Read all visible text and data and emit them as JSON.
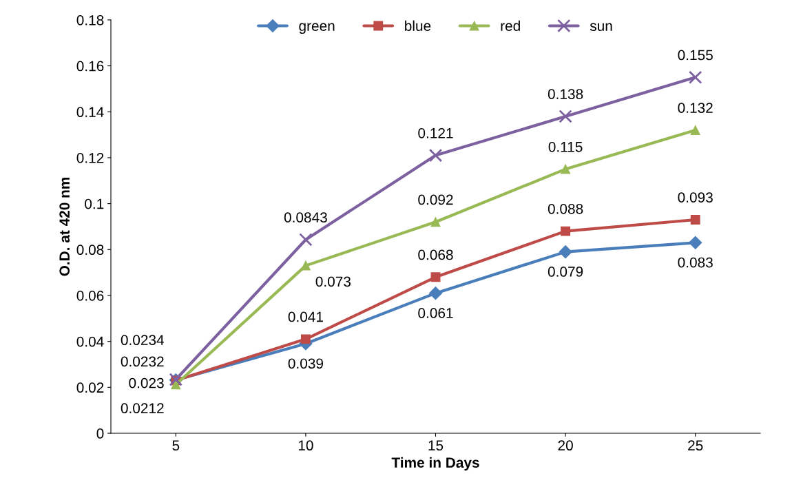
{
  "chart_data": {
    "type": "line",
    "xlabel": "Time in Days",
    "ylabel": "O.D. at 420 nm",
    "categories": [
      "5",
      "10",
      "15",
      "20",
      "25"
    ],
    "series": [
      {
        "name": "green",
        "color": "#4a7ebb",
        "marker": "diamond",
        "values": [
          0.0232,
          0.039,
          0.061,
          0.079,
          0.083
        ]
      },
      {
        "name": "blue",
        "color": "#be4b48",
        "marker": "square",
        "values": [
          0.023,
          0.041,
          0.068,
          0.088,
          0.093
        ]
      },
      {
        "name": "red",
        "color": "#98b954",
        "marker": "triangle",
        "values": [
          0.0212,
          0.073,
          0.092,
          0.115,
          0.132
        ]
      },
      {
        "name": "sun",
        "color": "#7d60a0",
        "marker": "cross",
        "values": [
          0.0234,
          0.0843,
          0.121,
          0.138,
          0.155
        ]
      }
    ],
    "ylim": [
      0,
      0.18
    ],
    "yticks": [
      0,
      0.02,
      0.04,
      0.06,
      0.08,
      0.1,
      0.12,
      0.14,
      0.16,
      0.18
    ],
    "data_labels": true,
    "legend": "top",
    "grid": false
  }
}
